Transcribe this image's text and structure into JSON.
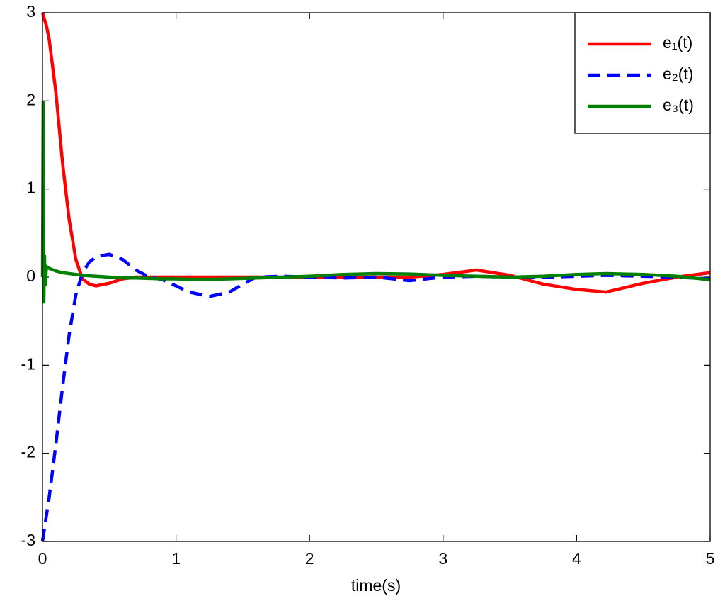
{
  "chart_data": {
    "type": "line",
    "xlabel": "time(s)",
    "x": [
      0,
      0.005,
      0.01,
      0.015,
      0.02,
      0.03,
      0.05,
      0.1,
      0.15,
      0.2,
      0.25,
      0.3,
      0.35,
      0.4,
      0.5,
      0.6,
      0.7,
      0.8,
      0.9,
      1.0,
      1.1,
      1.25,
      1.4,
      1.5,
      1.6,
      1.8,
      2.0,
      2.25,
      2.5,
      2.75,
      3.0,
      3.25,
      3.5,
      3.75,
      4.0,
      4.22,
      4.5,
      4.75,
      5.0
    ],
    "series": [
      {
        "name": "e₁(t)",
        "color": "#ff0000",
        "style": "solid",
        "values": [
          3,
          2.98,
          2.95,
          2.92,
          2.9,
          2.85,
          2.7,
          2.1,
          1.3,
          0.65,
          0.2,
          -0.02,
          -0.08,
          -0.1,
          -0.07,
          -0.02,
          0,
          0,
          0,
          0,
          0,
          0,
          0,
          0,
          0,
          0,
          0,
          0,
          0,
          0,
          0.03,
          0.08,
          0.02,
          -0.08,
          -0.14,
          -0.17,
          -0.07,
          0,
          0.05
        ]
      },
      {
        "name": "e₂(t)",
        "color": "#0000ff",
        "style": "dashed",
        "values": [
          -3,
          -2.95,
          -2.9,
          -2.85,
          -2.8,
          -2.7,
          -2.5,
          -1.9,
          -1.25,
          -0.65,
          -0.2,
          0.05,
          0.17,
          0.23,
          0.26,
          0.2,
          0.08,
          0,
          -0.03,
          -0.1,
          -0.17,
          -0.22,
          -0.17,
          -0.08,
          0,
          0.01,
          0,
          -0.01,
          0,
          -0.04,
          0,
          0.01,
          0,
          0,
          0.01,
          0.02,
          0.01,
          0,
          -0.02
        ]
      },
      {
        "name": "e₃(t)",
        "color": "#008000",
        "style": "solid",
        "values": [
          0,
          2.0,
          -0.3,
          0.25,
          -0.1,
          0.12,
          0.1,
          0.07,
          0.05,
          0.04,
          0.03,
          0.02,
          0.015,
          0.01,
          0,
          -0.01,
          -0.01,
          -0.015,
          -0.02,
          -0.02,
          -0.025,
          -0.025,
          -0.02,
          -0.015,
          -0.01,
          0,
          0.01,
          0.03,
          0.04,
          0.035,
          0.02,
          0.01,
          0,
          0.01,
          0.03,
          0.04,
          0.03,
          0.01,
          -0.03
        ]
      }
    ],
    "xlim": [
      0,
      5
    ],
    "xticks": [
      0,
      1,
      2,
      3,
      4,
      5
    ],
    "ylim": [
      -3,
      3
    ],
    "yticks": [
      -3,
      -2,
      -1,
      0,
      1,
      2,
      3
    ],
    "legend": "top-right"
  }
}
